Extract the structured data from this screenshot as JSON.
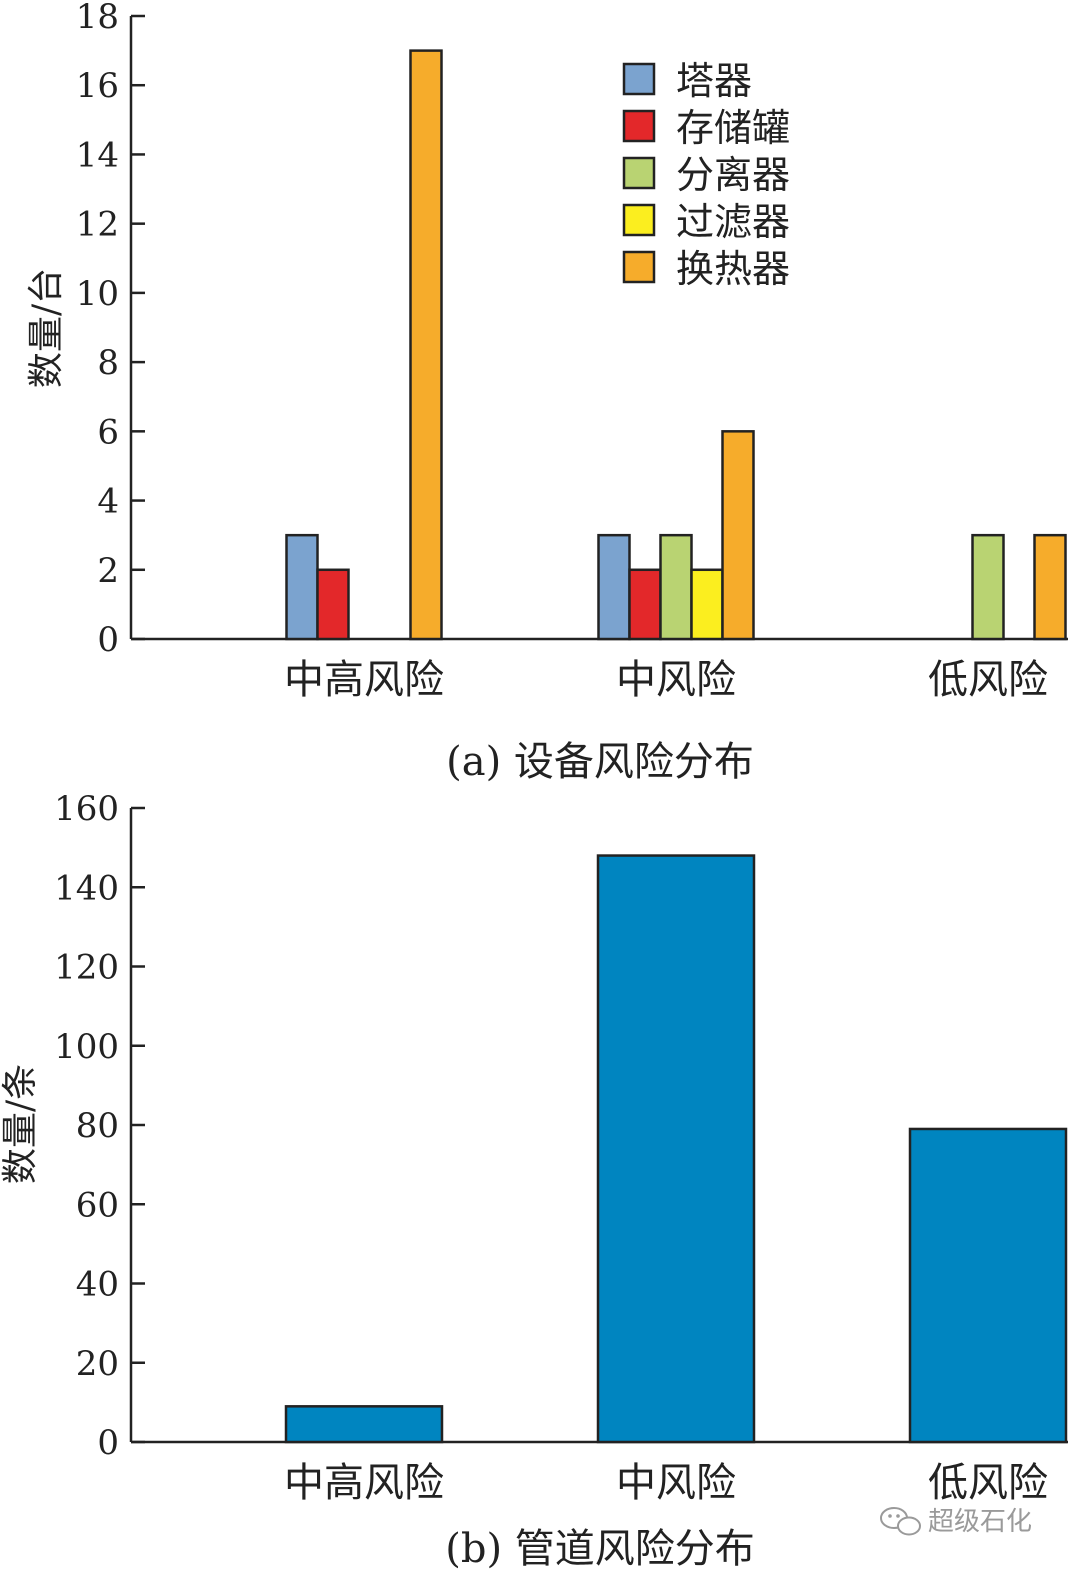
{
  "chart_data": [
    {
      "type": "bar",
      "caption": "(a) 设备风险分布",
      "ylabel": "数量/台",
      "xlabel": "",
      "ylim": [
        0,
        18
      ],
      "yticks": [
        0,
        2,
        4,
        6,
        8,
        10,
        12,
        14,
        16,
        18
      ],
      "categories": [
        "中高风险",
        "中风险",
        "低风险"
      ],
      "legend_position": "top-right",
      "series": [
        {
          "name": "塔器",
          "color": "#7ba3cf",
          "values": [
            3,
            3,
            0
          ]
        },
        {
          "name": "存储罐",
          "color": "#e3282a",
          "values": [
            2,
            2,
            0
          ]
        },
        {
          "name": "分离器",
          "color": "#b9d372",
          "values": [
            0,
            3,
            3
          ]
        },
        {
          "name": "过滤器",
          "color": "#fbee1f",
          "values": [
            0,
            2,
            0
          ]
        },
        {
          "name": "换热器",
          "color": "#f6ac2b",
          "values": [
            17,
            6,
            3
          ]
        }
      ]
    },
    {
      "type": "bar",
      "caption": "(b) 管道风险分布",
      "ylabel": "数量/条",
      "xlabel": "",
      "ylim": [
        0,
        160
      ],
      "yticks": [
        0,
        20,
        40,
        60,
        80,
        100,
        120,
        140,
        160
      ],
      "categories": [
        "中高风险",
        "中风险",
        "低风险"
      ],
      "series": [
        {
          "name": "",
          "color": "#0085c0",
          "values": [
            9,
            148,
            79
          ]
        }
      ]
    }
  ],
  "watermark": {
    "text": "超级石化",
    "icon": "wechat-icon"
  }
}
